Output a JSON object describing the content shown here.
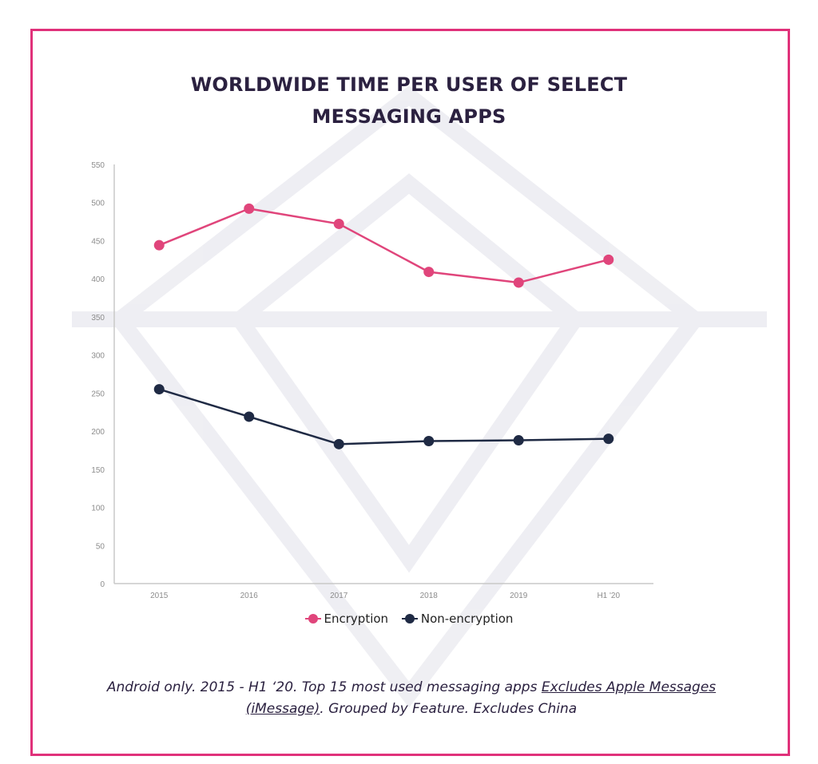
{
  "title_line1": "WORLDWIDE TIME PER USER OF SELECT",
  "title_line2": "MESSAGING APPS",
  "colors": {
    "frame": "#e0317a",
    "encryption": "#e0457b",
    "non_encryption": "#1f2a44",
    "axis": "#c8c8c8",
    "tick_text": "#8c8c8c",
    "text": "#2b2140"
  },
  "chart_data": {
    "type": "line",
    "title": "WORLDWIDE TIME PER USER OF SELECT MESSAGING APPS",
    "categories": [
      "2015",
      "2016",
      "2017",
      "2018",
      "2019",
      "H1 '20"
    ],
    "series": [
      {
        "name": "Encryption",
        "values": [
          444,
          492,
          472,
          409,
          395,
          425
        ]
      },
      {
        "name": "Non-encryption",
        "values": [
          255,
          219,
          183,
          187,
          188,
          190
        ]
      }
    ],
    "ylim": [
      0,
      550
    ],
    "yticks": [
      0,
      50,
      100,
      150,
      200,
      250,
      300,
      350,
      400,
      450,
      500,
      550
    ],
    "xlabel": "",
    "ylabel": "",
    "grid": false,
    "legend_position": "bottom"
  },
  "legend": {
    "encryption_label": "Encryption",
    "non_encryption_label": "Non-encryption"
  },
  "footnote": {
    "text_before": "Android only. 2015 - H1 ‘20. Top 15 most used messaging apps ",
    "link_text_1": "Excludes Apple Messages",
    "link_text_2": "(iMessage)",
    "text_after": ". Grouped by Feature. Excludes China"
  }
}
